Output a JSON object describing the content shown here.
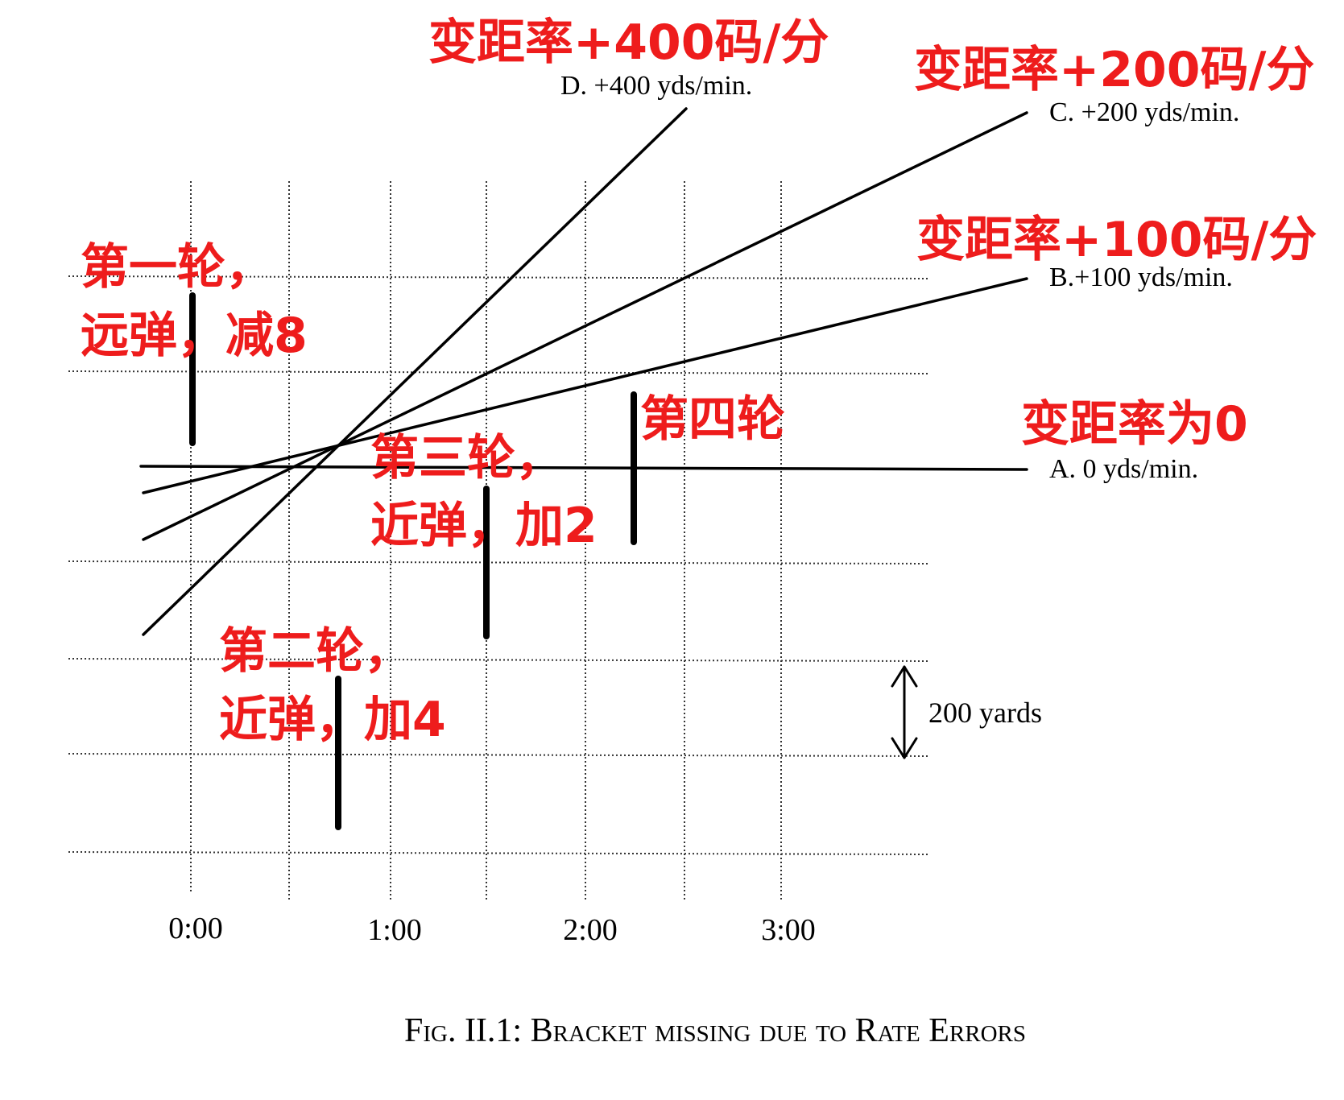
{
  "figure": {
    "caption": "Fig. II.1: Bracket missing due to Rate Errors",
    "time_ticks": [
      "0:00",
      "1:00",
      "2:00",
      "3:00"
    ],
    "scale_label": "200 yards",
    "lines": [
      {
        "id": "A",
        "label": "A. 0 yds/min.",
        "annotation": "变距率为0",
        "rate": 0
      },
      {
        "id": "B",
        "label": "B.+100 yds/min.",
        "annotation": "变距率+100码/分",
        "rate": 100
      },
      {
        "id": "C",
        "label": "C. +200 yds/min.",
        "annotation": "变距率+200码/分",
        "rate": 200
      },
      {
        "id": "D",
        "label": "D. +400 yds/min.",
        "annotation": "变距率+400码/分",
        "rate": 400
      }
    ],
    "salvos": [
      {
        "id": "1",
        "line1": "第一轮，",
        "line2": "远弹，减8"
      },
      {
        "id": "2",
        "line1": "第二轮，",
        "line2": "近弹，加4"
      },
      {
        "id": "3",
        "line1": "第三轮，",
        "line2": "近弹，加2"
      },
      {
        "id": "4",
        "line1": "第四轮",
        "line2": ""
      }
    ],
    "colors": {
      "annotation": "#ee1c1c",
      "ink": "#000000",
      "grid": "#333333"
    }
  }
}
